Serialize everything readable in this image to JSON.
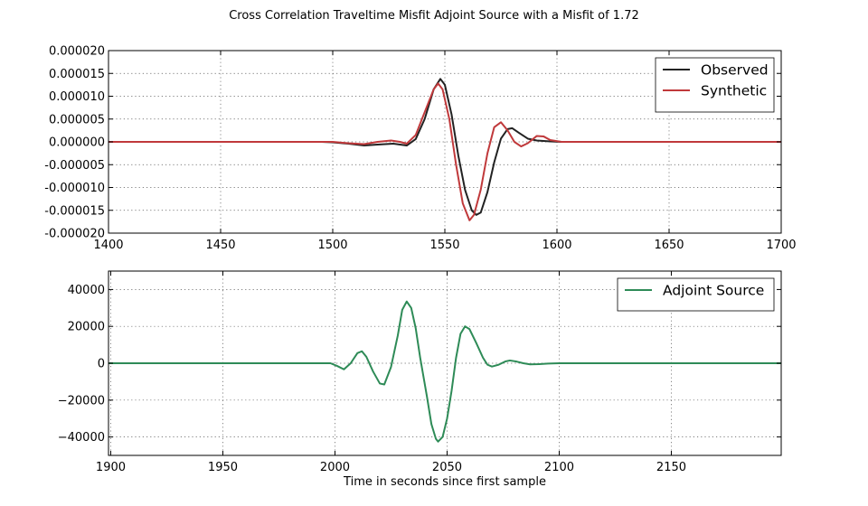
{
  "figure": {
    "title": "Cross Correlation Traveltime Misfit Adjoint Source with a Misfit of 1.72",
    "xlabel": "Time in seconds since first sample"
  },
  "chart_data": [
    {
      "type": "line",
      "xlim": [
        1400,
        1700
      ],
      "ylim": [
        -2e-05,
        2e-05
      ],
      "x_ticks": [
        1400,
        1450,
        1500,
        1550,
        1600,
        1650,
        1700
      ],
      "y_ticks": [
        "0.000020",
        "0.000015",
        "0.000010",
        "0.000005",
        "0.000000",
        "-0.000005",
        "-0.000010",
        "-0.000015",
        "-0.000020"
      ],
      "y_tick_values": [
        2e-05,
        1.5e-05,
        1e-05,
        5e-06,
        0,
        -5e-06,
        -1e-05,
        -1.5e-05,
        -2e-05
      ],
      "grid": true,
      "legend_position": "top-right",
      "series": [
        {
          "name": "Observed",
          "color": "#222222",
          "points": [
            [
              1400,
              0
            ],
            [
              1495,
              0
            ],
            [
              1500,
              -1e-07
            ],
            [
              1507,
              -4e-07
            ],
            [
              1514,
              -8e-07
            ],
            [
              1520,
              -6e-07
            ],
            [
              1527,
              -4e-07
            ],
            [
              1533,
              -8e-07
            ],
            [
              1537,
              6e-07
            ],
            [
              1541,
              5e-06
            ],
            [
              1545,
              1.15e-05
            ],
            [
              1548,
              1.38e-05
            ],
            [
              1550,
              1.25e-05
            ],
            [
              1553,
              6e-06
            ],
            [
              1556,
              -3e-06
            ],
            [
              1559,
              -1.05e-05
            ],
            [
              1562,
              -1.5e-05
            ],
            [
              1564,
              -1.6e-05
            ],
            [
              1566,
              -1.55e-05
            ],
            [
              1569,
              -1.1e-05
            ],
            [
              1572,
              -4.5e-06
            ],
            [
              1575,
              7e-07
            ],
            [
              1578,
              2.8e-06
            ],
            [
              1580,
              3e-06
            ],
            [
              1583,
              2e-06
            ],
            [
              1587,
              7e-07
            ],
            [
              1591,
              3e-07
            ],
            [
              1597,
              1e-07
            ],
            [
              1602,
              0
            ],
            [
              1700,
              0
            ]
          ]
        },
        {
          "name": "Synthetic",
          "color": "#c0393b",
          "points": [
            [
              1400,
              0
            ],
            [
              1500,
              0
            ],
            [
              1507,
              -3e-07
            ],
            [
              1514,
              -5e-07
            ],
            [
              1520,
              0
            ],
            [
              1526,
              3e-07
            ],
            [
              1530,
              0
            ],
            [
              1533,
              -4e-07
            ],
            [
              1537,
              1.5e-06
            ],
            [
              1541,
              6.5e-06
            ],
            [
              1545,
              1.15e-05
            ],
            [
              1547,
              1.28e-05
            ],
            [
              1549,
              1.15e-05
            ],
            [
              1552,
              5e-06
            ],
            [
              1555,
              -5e-06
            ],
            [
              1558,
              -1.35e-05
            ],
            [
              1561,
              -1.72e-05
            ],
            [
              1563,
              -1.6e-05
            ],
            [
              1566,
              -1.05e-05
            ],
            [
              1569,
              -2.5e-06
            ],
            [
              1572,
              3.2e-06
            ],
            [
              1575,
              4.3e-06
            ],
            [
              1578,
              2.5e-06
            ],
            [
              1581,
              0
            ],
            [
              1584,
              -1e-06
            ],
            [
              1587,
              -3e-07
            ],
            [
              1591,
              1.3e-06
            ],
            [
              1594,
              1.2e-06
            ],
            [
              1597,
              4e-07
            ],
            [
              1602,
              0
            ],
            [
              1700,
              0
            ]
          ]
        }
      ]
    },
    {
      "type": "line",
      "xlim": [
        1899,
        2199
      ],
      "ylim": [
        -50000,
        50000
      ],
      "x_ticks": [
        1900,
        1950,
        2000,
        2050,
        2100,
        2150
      ],
      "y_ticks": [
        "40000",
        "20000",
        "0",
        "−20000",
        "−40000"
      ],
      "y_tick_values": [
        40000,
        20000,
        0,
        -20000,
        -40000
      ],
      "grid": true,
      "legend_position": "top-right",
      "series": [
        {
          "name": "Adjoint Source",
          "color": "#2e8b57",
          "points": [
            [
              1899,
              0
            ],
            [
              1998,
              0
            ],
            [
              2001,
              -1500
            ],
            [
              2004,
              -3300
            ],
            [
              2007,
              0
            ],
            [
              2010,
              5500
            ],
            [
              2012,
              6500
            ],
            [
              2014,
              3500
            ],
            [
              2017,
              -4500
            ],
            [
              2020,
              -11000
            ],
            [
              2022,
              -11500
            ],
            [
              2025,
              -2000
            ],
            [
              2028,
              15000
            ],
            [
              2030,
              29000
            ],
            [
              2032,
              33500
            ],
            [
              2034,
              30000
            ],
            [
              2036,
              19000
            ],
            [
              2038,
              3000
            ],
            [
              2041,
              -18000
            ],
            [
              2043,
              -33000
            ],
            [
              2045,
              -41000
            ],
            [
              2046,
              -42500
            ],
            [
              2048,
              -40000
            ],
            [
              2050,
              -30000
            ],
            [
              2052,
              -15000
            ],
            [
              2054,
              3000
            ],
            [
              2056,
              16000
            ],
            [
              2058,
              20000
            ],
            [
              2060,
              18500
            ],
            [
              2063,
              11000
            ],
            [
              2066,
              3000
            ],
            [
              2068,
              -800
            ],
            [
              2070,
              -1800
            ],
            [
              2073,
              -800
            ],
            [
              2076,
              1000
            ],
            [
              2078,
              1500
            ],
            [
              2081,
              900
            ],
            [
              2084,
              0
            ],
            [
              2087,
              -600
            ],
            [
              2091,
              -500
            ],
            [
              2095,
              -200
            ],
            [
              2100,
              0
            ],
            [
              2199,
              0
            ]
          ]
        }
      ]
    }
  ]
}
